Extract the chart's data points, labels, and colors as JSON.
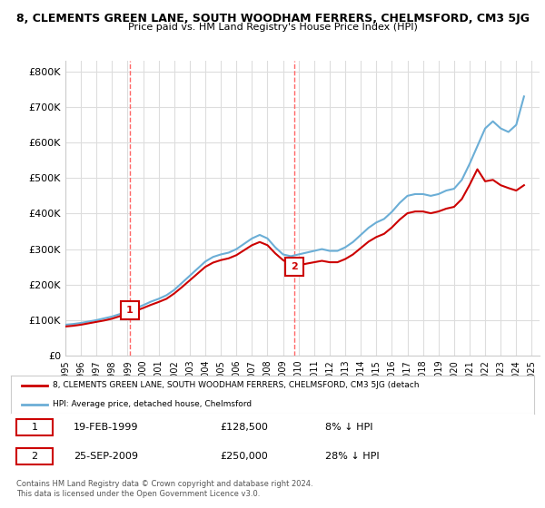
{
  "title": "8, CLEMENTS GREEN LANE, SOUTH WOODHAM FERRERS, CHELMSFORD, CM3 5JG",
  "subtitle": "Price paid vs. HM Land Registry's House Price Index (HPI)",
  "ylabel_ticks": [
    "£0",
    "£100K",
    "£200K",
    "£300K",
    "£400K",
    "£500K",
    "£600K",
    "£700K",
    "£800K"
  ],
  "ytick_values": [
    0,
    100000,
    200000,
    300000,
    400000,
    500000,
    600000,
    700000,
    800000
  ],
  "ylim": [
    0,
    830000
  ],
  "xlim_start": 1995.0,
  "xlim_end": 2025.5,
  "transaction1_date": 1999.13,
  "transaction1_price": 128500,
  "transaction1_label": "1",
  "transaction2_date": 2009.73,
  "transaction2_price": 250000,
  "transaction2_label": "2",
  "hpi_color": "#6baed6",
  "price_color": "#cc0000",
  "vline_color": "#ff6666",
  "background_color": "#ffffff",
  "grid_color": "#dddddd",
  "legend_label_price": "8, CLEMENTS GREEN LANE, SOUTH WOODHAM FERRERS, CHELMSFORD, CM3 5JG (detach",
  "legend_label_hpi": "HPI: Average price, detached house, Chelmsford",
  "table_row1": [
    "1",
    "19-FEB-1999",
    "£128,500",
    "8% ↓ HPI"
  ],
  "table_row2": [
    "2",
    "25-SEP-2009",
    "£250,000",
    "28% ↓ HPI"
  ],
  "footer": "Contains HM Land Registry data © Crown copyright and database right 2024.\nThis data is licensed under the Open Government Licence v3.0."
}
